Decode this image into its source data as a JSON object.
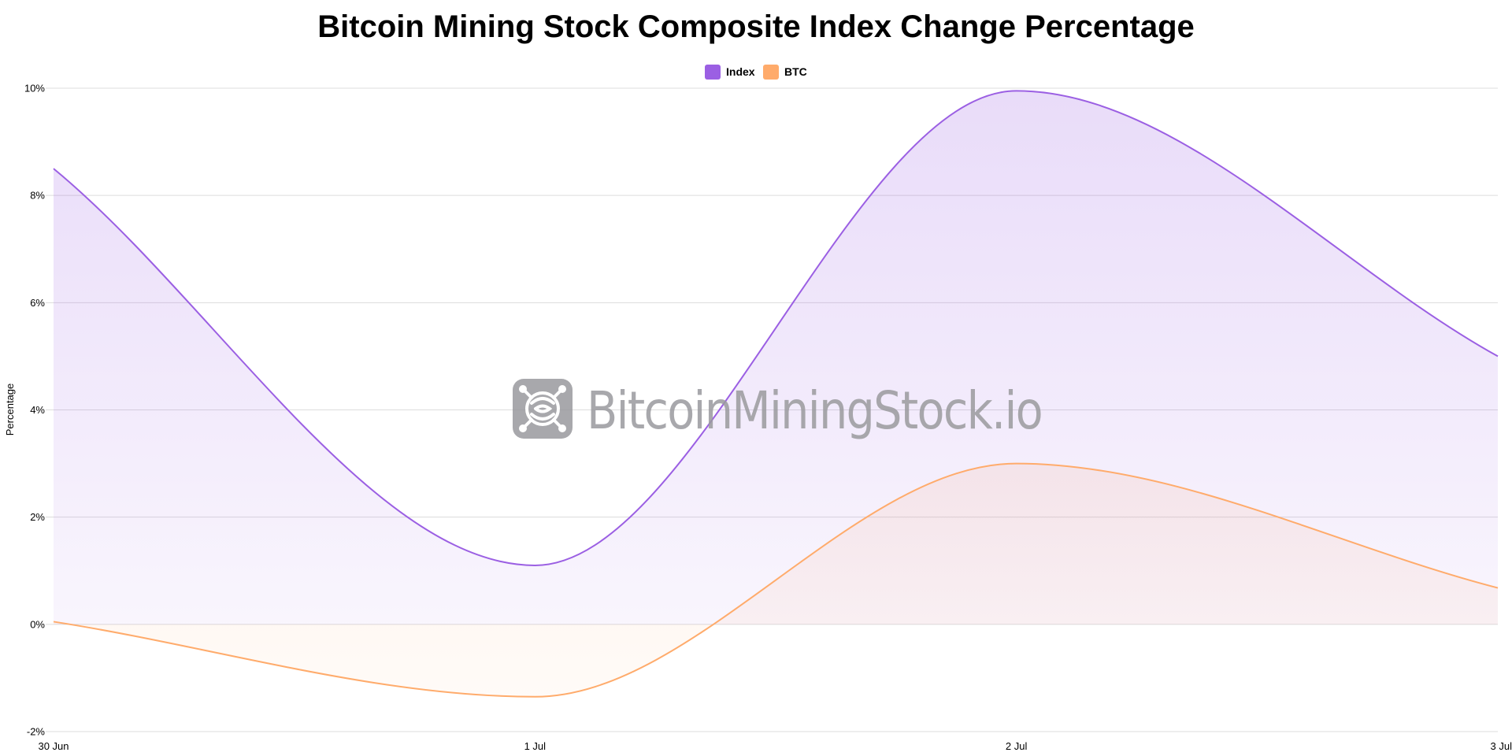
{
  "chart_data": {
    "type": "area",
    "title": "Bitcoin Mining Stock Composite Index Change Percentage",
    "xlabel": "",
    "ylabel": "Percentage",
    "categories": [
      "30 Jun",
      "1 Jul",
      "2 Jul",
      "3 Jul"
    ],
    "x_tick_labels": [
      "30 Jun",
      "1 Jul",
      "2 Jul",
      "3 Jul"
    ],
    "y_ticks": [
      -2,
      0,
      2,
      4,
      6,
      8,
      10
    ],
    "y_tick_labels": [
      "-2%",
      "0%",
      "2%",
      "4%",
      "6%",
      "8%",
      "10%"
    ],
    "ylim": [
      -2,
      10
    ],
    "grid": true,
    "legend_position": "top-center",
    "interpolation": "monotone",
    "fill": "to-zero",
    "series": [
      {
        "name": "Index",
        "color": "#9b5fe3",
        "values": [
          8.5,
          1.1,
          9.95,
          5.0
        ]
      },
      {
        "name": "BTC",
        "color": "#ffab6b",
        "values": [
          0.05,
          -1.35,
          3.0,
          0.68
        ]
      }
    ],
    "watermark": "BitcoinMiningStock.io"
  }
}
